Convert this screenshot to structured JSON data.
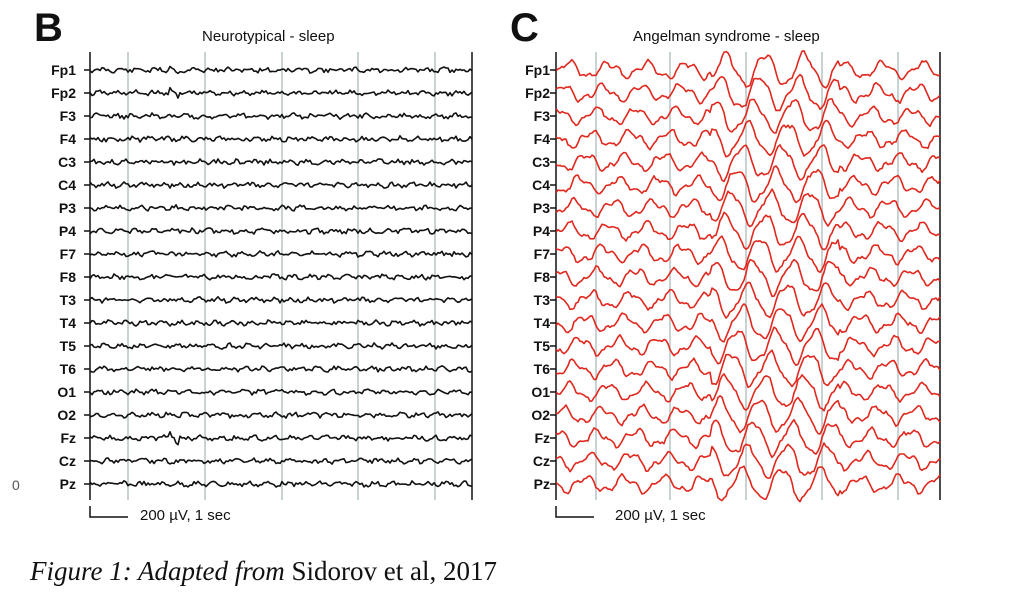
{
  "panels": [
    {
      "letter": "B",
      "title": "Neurotypical - sleep",
      "trace_color": "#111111",
      "amplitude": "low"
    },
    {
      "letter": "C",
      "title": "Angelman syndrome - sleep",
      "trace_color": "#e0281e",
      "amplitude": "high"
    }
  ],
  "channels": [
    "Fp1",
    "Fp2",
    "F3",
    "F4",
    "C3",
    "C4",
    "P3",
    "P4",
    "F7",
    "F8",
    "T3",
    "T4",
    "T5",
    "T6",
    "O1",
    "O2",
    "Fz",
    "Cz",
    "Pz"
  ],
  "scale_label": "200 µV, 1 sec",
  "caption": {
    "italic_part": "Figure 1: Adapted from",
    "regular_part": "Sidorov et al, 2017"
  },
  "edge_text": "0"
}
